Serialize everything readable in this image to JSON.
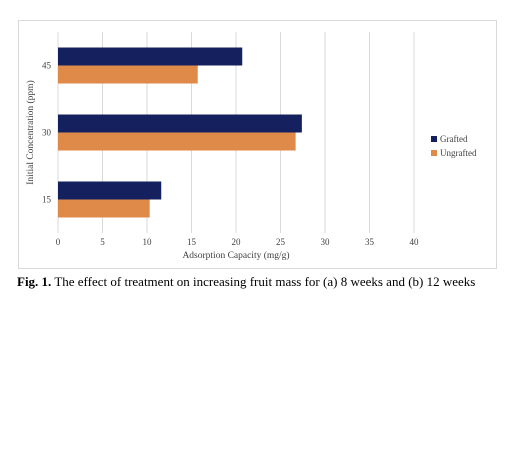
{
  "chart_data": {
    "type": "bar",
    "orientation": "horizontal",
    "categories": [
      "15",
      "30",
      "45"
    ],
    "series": [
      {
        "name": "Grafted",
        "color": "#14215e",
        "values": [
          11.6,
          27.4,
          20.7
        ]
      },
      {
        "name": "Ungrafted",
        "color": "#e08a4a",
        "values": [
          10.3,
          26.7,
          15.7
        ]
      }
    ],
    "xlabel": "Adsorption Capacity (mg/g)",
    "ylabel": "Initial Concentration (ppm)",
    "xlim": [
      0,
      40
    ],
    "xticks": [
      "0",
      "5",
      "10",
      "15",
      "20",
      "25",
      "30",
      "35",
      "40"
    ],
    "grid": "vertical",
    "legend": "right"
  },
  "caption": {
    "label": "Fig. 1.",
    "text": " The effect of treatment on increasing fruit mass for (a) 8 weeks and (b) 12 weeks"
  }
}
